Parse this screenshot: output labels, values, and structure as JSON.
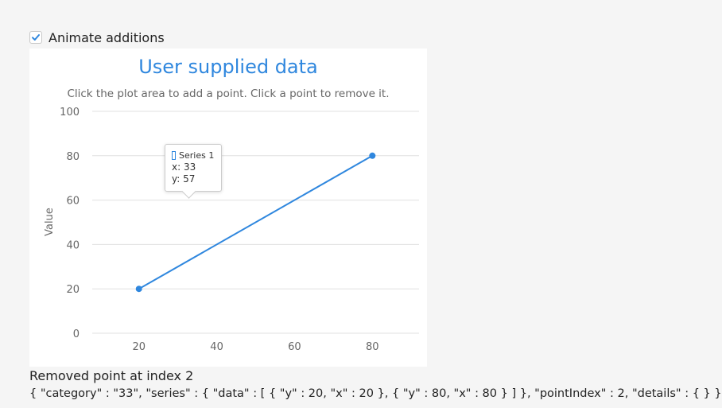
{
  "controls": {
    "animate_label": "Animate additions",
    "animate_checked": true
  },
  "chart_data": {
    "type": "line",
    "title": "User supplied data",
    "subtitle": "Click the plot area to add a point. Click a point to remove it.",
    "xlabel": "",
    "ylabel": "Value",
    "xlim": [
      8,
      92
    ],
    "ylim": [
      0,
      100
    ],
    "x_ticks": [
      20,
      40,
      60,
      80
    ],
    "y_ticks": [
      0,
      20,
      40,
      60,
      80,
      100
    ],
    "grid": true,
    "legend": "none",
    "series": [
      {
        "name": "Series 1",
        "color": "#2f87de",
        "points": [
          {
            "x": 20,
            "y": 20
          },
          {
            "x": 80,
            "y": 80
          }
        ]
      }
    ]
  },
  "tooltip": {
    "series_name": "Series 1",
    "x_text": "x: 33",
    "y_text": "y: 57"
  },
  "status": {
    "message": "Removed point at index 2",
    "details": "{ \"category\" : \"33\", \"series\" : { \"data\" : [ { \"y\" : 20, \"x\" : 20 }, { \"y\" : 80, \"x\" : 80 } ] }, \"pointIndex\" : 2, \"details\" : { } }"
  }
}
